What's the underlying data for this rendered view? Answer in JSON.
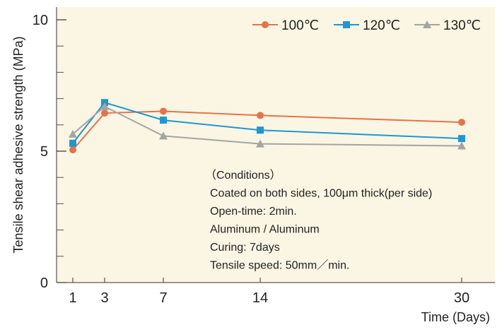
{
  "chart_data": {
    "type": "line",
    "title": "",
    "xlabel": "Time (Days)",
    "ylabel": "Tensile shear adhesive strength (MPa)",
    "x": [
      1,
      3,
      7,
      14,
      30
    ],
    "x_tick_labels": [
      "1",
      "3",
      "7",
      "14",
      "30"
    ],
    "y_tick_labels": [
      "0",
      "5",
      "10"
    ],
    "ylim": [
      0,
      10
    ],
    "y_minor_step": 1,
    "grid": false,
    "legend_position": "top-right",
    "plot_background": "#fbf6e3",
    "series": [
      {
        "name": "100℃",
        "marker": "circle",
        "color": "#e8714a",
        "values": [
          5.05,
          6.45,
          6.52,
          6.36,
          6.1
        ]
      },
      {
        "name": "120℃",
        "marker": "square",
        "color": "#1d97d4",
        "values": [
          5.3,
          6.85,
          6.18,
          5.8,
          5.48
        ]
      },
      {
        "name": "130℃",
        "marker": "triangle",
        "color": "#a4a4a4",
        "values": [
          5.65,
          6.7,
          5.58,
          5.28,
          5.2
        ]
      }
    ],
    "annotations": [
      "（Conditions）",
      "Coated on both sides, 100μm thick(per side)",
      "Open-time: 2min.",
      "Aluminum / Aluminum",
      "Curing: 7days",
      "Tensile speed: 50mm／min."
    ]
  }
}
